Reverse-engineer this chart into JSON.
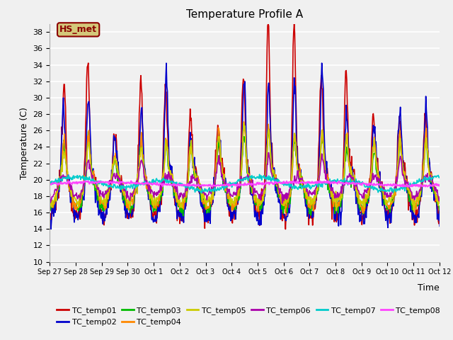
{
  "title": "Temperature Profile A",
  "xlabel": "Time",
  "ylabel": "Temperature (C)",
  "ylim": [
    10,
    39
  ],
  "yticks": [
    10,
    12,
    14,
    16,
    18,
    20,
    22,
    24,
    26,
    28,
    30,
    32,
    34,
    36,
    38
  ],
  "bg_color": "#f0f0f0",
  "annotation": "HS_met",
  "annotation_color": "#8b0000",
  "annotation_bg": "#d4c87a",
  "series_order": [
    "TC_temp01",
    "TC_temp02",
    "TC_temp03",
    "TC_temp04",
    "TC_temp05",
    "TC_temp06",
    "TC_temp07",
    "TC_temp08"
  ],
  "series_colors": [
    "#cc0000",
    "#0000cc",
    "#00bb00",
    "#ff8800",
    "#cccc00",
    "#aa00aa",
    "#00cccc",
    "#ff44ff"
  ],
  "series_lw": [
    1.2,
    1.2,
    1.2,
    1.2,
    1.2,
    1.2,
    1.2,
    1.5
  ],
  "xtick_labels": [
    "Sep 27",
    "Sep 28",
    "Sep 29",
    "Sep 30",
    "Oct 1",
    "Oct 2",
    "Oct 3",
    "Oct 4",
    "Oct 5",
    "Oct 6",
    "Oct 7",
    "Oct 8",
    "Oct 9",
    "Oct 10",
    "Oct 11",
    "Oct 12"
  ],
  "n_days": 16,
  "pts_per_day": 48
}
